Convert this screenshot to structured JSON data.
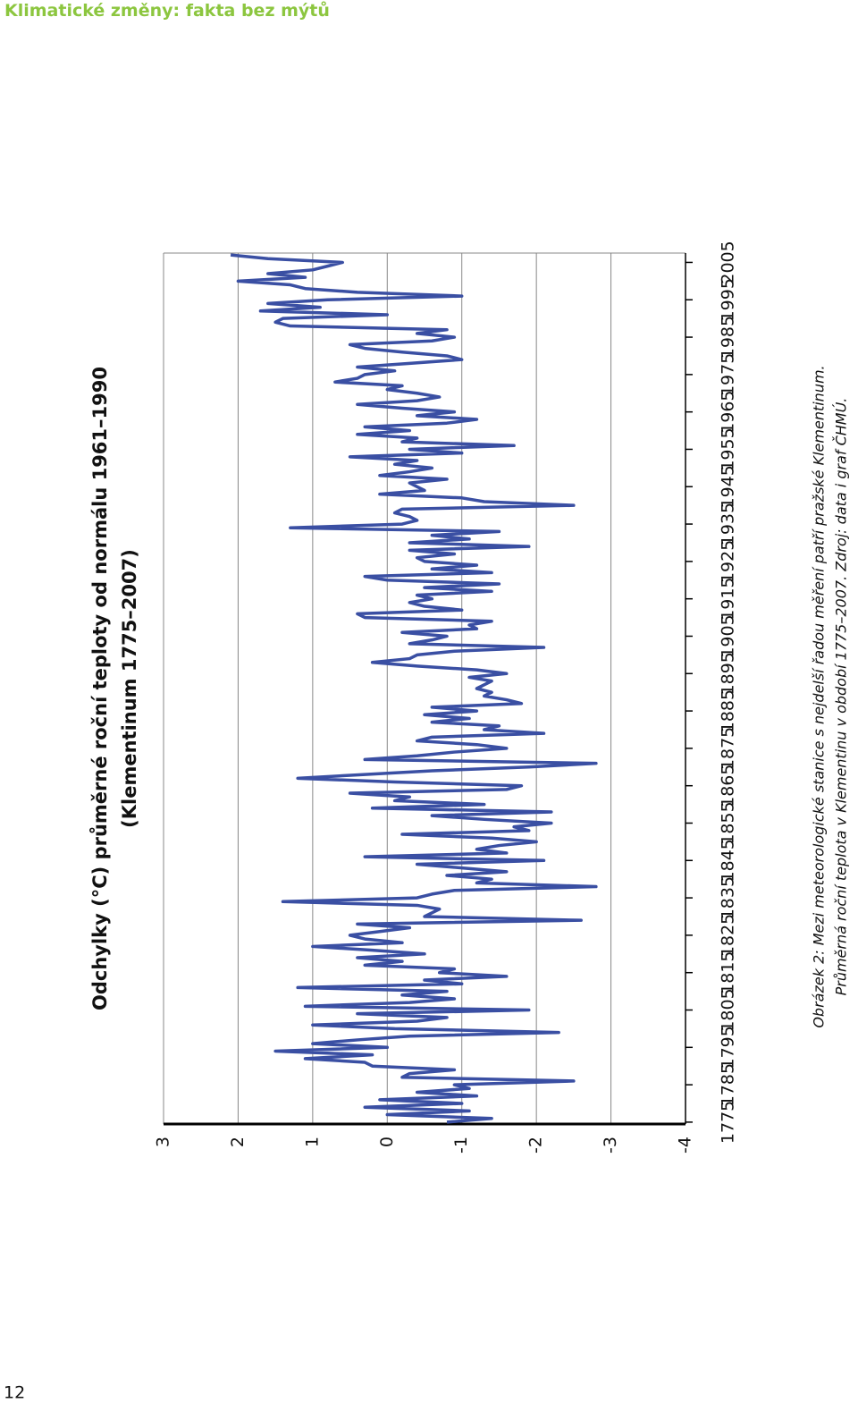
{
  "header": "Klimatické změny: fakta bez mýtů",
  "page_number": "12",
  "caption": [
    "Obrázek 2: Mezi meteorologické stanice s nejdelší řadou měření patří pražské Klementinum.",
    "Průměrná roční teplota v Klementinu v období 1775–2007. Zdroj: data i graf ČHMÚ."
  ],
  "chart_data": {
    "type": "line",
    "title": [
      "Odchylky (°C) průměrné roční teploty od normálu 1961–1990",
      "(Klementinum 1775–2007)"
    ],
    "color": "#3a4fa3",
    "grid": true,
    "xlim": [
      1774.5,
      2007.5
    ],
    "xticks": [
      1775,
      1785,
      1795,
      1805,
      1815,
      1825,
      1835,
      1845,
      1855,
      1865,
      1875,
      1885,
      1895,
      1905,
      1915,
      1925,
      1935,
      1945,
      1955,
      1965,
      1975,
      1985,
      1995,
      2005
    ],
    "ylim": [
      -4,
      3
    ],
    "yticks": [
      3,
      2,
      1,
      0,
      -1,
      -2,
      -3,
      -4
    ],
    "x": [
      1775,
      1776,
      1777,
      1778,
      1779,
      1780,
      1781,
      1782,
      1783,
      1784,
      1785,
      1786,
      1787,
      1788,
      1789,
      1790,
      1791,
      1792,
      1793,
      1794,
      1795,
      1796,
      1797,
      1798,
      1799,
      1800,
      1801,
      1802,
      1803,
      1804,
      1805,
      1806,
      1807,
      1808,
      1809,
      1810,
      1811,
      1812,
      1813,
      1814,
      1815,
      1816,
      1817,
      1818,
      1819,
      1820,
      1821,
      1822,
      1823,
      1824,
      1825,
      1826,
      1827,
      1828,
      1829,
      1830,
      1831,
      1832,
      1833,
      1834,
      1835,
      1836,
      1837,
      1838,
      1839,
      1840,
      1841,
      1842,
      1843,
      1844,
      1845,
      1846,
      1847,
      1848,
      1849,
      1850,
      1851,
      1852,
      1853,
      1854,
      1855,
      1856,
      1857,
      1858,
      1859,
      1860,
      1861,
      1862,
      1863,
      1864,
      1865,
      1866,
      1867,
      1868,
      1869,
      1870,
      1871,
      1872,
      1873,
      1874,
      1875,
      1876,
      1877,
      1878,
      1879,
      1880,
      1881,
      1882,
      1883,
      1884,
      1885,
      1886,
      1887,
      1888,
      1889,
      1890,
      1891,
      1892,
      1893,
      1894,
      1895,
      1896,
      1897,
      1898,
      1899,
      1900,
      1901,
      1902,
      1903,
      1904,
      1905,
      1906,
      1907,
      1908,
      1909,
      1910,
      1911,
      1912,
      1913,
      1914,
      1915,
      1916,
      1917,
      1918,
      1919,
      1920,
      1921,
      1922,
      1923,
      1924,
      1925,
      1926,
      1927,
      1928,
      1929,
      1930,
      1931,
      1932,
      1933,
      1934,
      1935,
      1936,
      1937,
      1938,
      1939,
      1940,
      1941,
      1942,
      1943,
      1944,
      1945,
      1946,
      1947,
      1948,
      1949,
      1950,
      1951,
      1952,
      1953,
      1954,
      1955,
      1956,
      1957,
      1958,
      1959,
      1960,
      1961,
      1962,
      1963,
      1964,
      1965,
      1966,
      1967,
      1968,
      1969,
      1970,
      1971,
      1972,
      1973,
      1974,
      1975,
      1976,
      1977,
      1978,
      1979,
      1980,
      1981,
      1982,
      1983,
      1984,
      1985,
      1986,
      1987,
      1988,
      1989,
      1990,
      1991,
      1992,
      1993,
      1994,
      1995,
      1996,
      1997,
      1998,
      1999,
      2000,
      2001,
      2002,
      2003,
      2004,
      2005,
      2006,
      2007
    ],
    "values": [
      -0.8,
      -1.4,
      0.0,
      -1.1,
      0.3,
      -1.0,
      0.1,
      -1.2,
      -0.4,
      -1.1,
      -0.9,
      -2.5,
      -0.2,
      -0.3,
      -0.9,
      0.2,
      0.3,
      1.1,
      0.2,
      1.5,
      0.0,
      1.0,
      0.4,
      -0.3,
      -2.3,
      -0.1,
      1.0,
      -0.4,
      -0.8,
      0.4,
      -1.9,
      1.1,
      -0.3,
      -0.9,
      -0.2,
      -0.8,
      1.2,
      -1.0,
      -0.5,
      -1.6,
      -0.7,
      -0.9,
      0.3,
      -0.2,
      0.4,
      -0.5,
      0.2,
      1.0,
      -0.2,
      0.3,
      0.5,
      0.1,
      -0.3,
      0.4,
      -2.6,
      -0.5,
      -0.6,
      -0.7,
      -0.4,
      1.4,
      -0.4,
      -0.6,
      -0.9,
      -2.8,
      -1.2,
      -1.4,
      -0.8,
      -1.6,
      -1.0,
      -0.4,
      -2.1,
      0.3,
      -1.6,
      -1.2,
      -1.5,
      -2.0,
      -1.4,
      -0.2,
      -1.9,
      -1.7,
      -2.2,
      -1.3,
      -0.6,
      -2.2,
      0.2,
      -1.3,
      -0.1,
      -0.3,
      0.5,
      -1.6,
      -1.8,
      -0.1,
      1.2,
      0.3,
      -0.6,
      -1.9,
      -2.8,
      0.3,
      -0.4,
      -0.9,
      -1.6,
      -1.2,
      -0.4,
      -0.6,
      -2.1,
      -1.3,
      -1.5,
      -0.6,
      -1.1,
      -0.5,
      -1.2,
      -0.6,
      -1.8,
      -1.6,
      -1.3,
      -1.4,
      -1.2,
      -1.3,
      -1.4,
      -1.1,
      -1.6,
      -1.2,
      -0.4,
      0.2,
      -0.3,
      -0.4,
      -0.9,
      -2.1,
      -0.3,
      -0.6,
      -0.8,
      -0.2,
      -1.2,
      -1.1,
      -1.4,
      0.3,
      0.4,
      -1.0,
      -0.5,
      -0.3,
      -0.6,
      -0.4,
      -1.4,
      -0.5,
      -1.5,
      0.0,
      0.3,
      -1.4,
      -0.6,
      -1.2,
      -0.5,
      -0.4,
      -0.9,
      -0.3,
      -1.9,
      -0.3,
      -1.1,
      -0.6,
      -1.5,
      1.3,
      -0.2,
      -0.4,
      -0.3,
      -0.1,
      -0.2,
      -2.5,
      -1.3,
      -1.0,
      0.1,
      -0.5,
      -0.4,
      -0.3,
      -0.8,
      0.1,
      -0.3,
      -0.6,
      -0.1,
      -0.4,
      0.5,
      -1.0,
      -0.3,
      -1.7,
      -0.2,
      -0.4,
      0.4,
      -0.3,
      0.3,
      -0.8,
      -1.2,
      -0.4,
      -0.9,
      -0.2,
      0.4,
      -0.4,
      -0.7,
      -0.4,
      0.0,
      -0.2,
      0.7,
      0.4,
      0.3,
      -0.1,
      0.4,
      -0.3,
      -1.0,
      -0.8,
      -0.2,
      0.3,
      0.5,
      -0.6,
      -0.9,
      -0.4,
      -0.8,
      1.3,
      1.5,
      1.4,
      0.0,
      1.7,
      0.9,
      1.6,
      0.8,
      -1.0,
      0.4,
      1.1,
      1.3,
      2.0,
      1.1,
      1.6,
      1.0,
      0.8,
      0.6,
      1.6,
      2.1
    ]
  }
}
